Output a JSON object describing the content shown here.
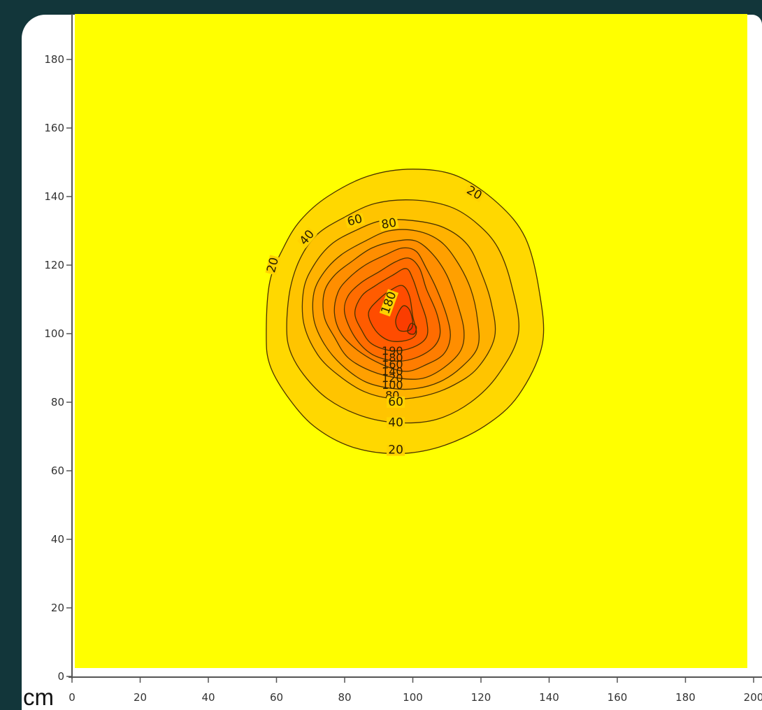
{
  "chart_data": {
    "type": "heatmap",
    "subtype": "filled-contour",
    "title": "",
    "xlabel": "",
    "ylabel": "",
    "unit_label": "cm",
    "xlim": [
      0,
      200
    ],
    "ylim": [
      0,
      190
    ],
    "x_ticks": [
      0,
      20,
      40,
      60,
      80,
      100,
      120,
      140,
      160,
      180,
      200
    ],
    "y_ticks": [
      0,
      20,
      40,
      60,
      80,
      100,
      120,
      140,
      160,
      180
    ],
    "x_tick_labels": [
      "0",
      "20",
      "40",
      "60",
      "80",
      "100",
      "120",
      "140",
      "160",
      "180",
      "200"
    ],
    "y_tick_labels": [
      "0",
      "20",
      "40",
      "60",
      "80",
      "100",
      "120",
      "140",
      "160",
      "180"
    ],
    "grid": false,
    "legend": "none",
    "background_color": "#ffff00",
    "colors": [
      "#ffff00",
      "#ffd800",
      "#ffc400",
      "#ffb200",
      "#ffa000",
      "#ff8e00",
      "#ff7d00",
      "#ff6c00",
      "#ff5c00",
      "#ff4c00",
      "#fb3d00",
      "#f53000"
    ],
    "peak": {
      "x": 100,
      "y": 101
    },
    "contour_levels": [
      20,
      40,
      60,
      80,
      100,
      120,
      140,
      160,
      180,
      190,
      200
    ],
    "contours": [
      {
        "level": 20,
        "label": "20",
        "points": [
          [
            57,
            100
          ],
          [
            58,
            115
          ],
          [
            62,
            125
          ],
          [
            67,
            133
          ],
          [
            75,
            140
          ],
          [
            87,
            146
          ],
          [
            100,
            148
          ],
          [
            113,
            146
          ],
          [
            125,
            138
          ],
          [
            133,
            128
          ],
          [
            137,
            113
          ],
          [
            138,
            97
          ],
          [
            131,
            82
          ],
          [
            121,
            73
          ],
          [
            108,
            67
          ],
          [
            95,
            65
          ],
          [
            82,
            67
          ],
          [
            71,
            73
          ],
          [
            63,
            82
          ],
          [
            58,
            91
          ]
        ]
      },
      {
        "level": 40,
        "label": "40",
        "points": [
          [
            63,
            102
          ],
          [
            64,
            113
          ],
          [
            67,
            122
          ],
          [
            72,
            129
          ],
          [
            80,
            134
          ],
          [
            89,
            138
          ],
          [
            100,
            139
          ],
          [
            111,
            137
          ],
          [
            119,
            132
          ],
          [
            125,
            125
          ],
          [
            129,
            114
          ],
          [
            131,
            100
          ],
          [
            125,
            88
          ],
          [
            117,
            80
          ],
          [
            107,
            75
          ],
          [
            96,
            74
          ],
          [
            85,
            76
          ],
          [
            75,
            81
          ],
          [
            68,
            88
          ],
          [
            64,
            95
          ]
        ]
      },
      {
        "level": 60,
        "label": "60",
        "points": [
          [
            68,
            103
          ],
          [
            68,
            113
          ],
          [
            71,
            120
          ],
          [
            76,
            126
          ],
          [
            83,
            130
          ],
          [
            91,
            133
          ],
          [
            100,
            133
          ],
          [
            109,
            131
          ],
          [
            116,
            126
          ],
          [
            120,
            118
          ],
          [
            123,
            109
          ],
          [
            124,
            99
          ],
          [
            119,
            90
          ],
          [
            112,
            85
          ],
          [
            104,
            82
          ],
          [
            95,
            81
          ],
          [
            86,
            83
          ],
          [
            78,
            88
          ],
          [
            72,
            94
          ]
        ]
      },
      {
        "level": 80,
        "label": "80",
        "points": [
          [
            71,
            104
          ],
          [
            71,
            112
          ],
          [
            74,
            118
          ],
          [
            79,
            123
          ],
          [
            86,
            127
          ],
          [
            93,
            130
          ],
          [
            101,
            130
          ],
          [
            108,
            127
          ],
          [
            113,
            121
          ],
          [
            117,
            113
          ],
          [
            119,
            104
          ],
          [
            119,
            96
          ],
          [
            114,
            90
          ],
          [
            108,
            86
          ],
          [
            101,
            84
          ],
          [
            94,
            84
          ],
          [
            86,
            86
          ],
          [
            79,
            91
          ],
          [
            74,
            97
          ]
        ]
      },
      {
        "level": 100,
        "label": "",
        "points": [
          [
            74,
            105
          ],
          [
            74,
            112
          ],
          [
            77,
            117
          ],
          [
            82,
            121
          ],
          [
            88,
            125
          ],
          [
            95,
            127
          ],
          [
            101,
            127
          ],
          [
            106,
            123
          ],
          [
            110,
            117
          ],
          [
            113,
            109
          ],
          [
            115,
            101
          ],
          [
            114,
            95
          ],
          [
            109,
            90
          ],
          [
            103,
            87
          ],
          [
            96,
            87
          ],
          [
            88,
            89
          ],
          [
            81,
            93
          ],
          [
            77,
            99
          ]
        ]
      },
      {
        "level": 120,
        "label": "",
        "points": [
          [
            77,
            106
          ],
          [
            78,
            112
          ],
          [
            81,
            116
          ],
          [
            86,
            120
          ],
          [
            92,
            123
          ],
          [
            97,
            125
          ],
          [
            101,
            124
          ],
          [
            104,
            119
          ],
          [
            107,
            113
          ],
          [
            110,
            105
          ],
          [
            111,
            99
          ],
          [
            109,
            94
          ],
          [
            104,
            91
          ],
          [
            98,
            89
          ],
          [
            91,
            91
          ],
          [
            84,
            95
          ],
          [
            79,
            100
          ]
        ]
      },
      {
        "level": 140,
        "label": "",
        "points": [
          [
            80,
            106
          ],
          [
            81,
            111
          ],
          [
            85,
            115
          ],
          [
            90,
            118
          ],
          [
            95,
            121
          ],
          [
            99,
            122
          ],
          [
            102,
            119
          ],
          [
            104,
            113
          ],
          [
            107,
            106
          ],
          [
            108,
            100
          ],
          [
            106,
            96
          ],
          [
            101,
            93
          ],
          [
            95,
            92
          ],
          [
            88,
            94
          ],
          [
            83,
            99
          ]
        ]
      },
      {
        "level": 160,
        "label": "",
        "points": [
          [
            83,
            106
          ],
          [
            85,
            111
          ],
          [
            89,
            114
          ],
          [
            94,
            117
          ],
          [
            98,
            119
          ],
          [
            100,
            116
          ],
          [
            102,
            110
          ],
          [
            104,
            104
          ],
          [
            104,
            99
          ],
          [
            100,
            96
          ],
          [
            94,
            95
          ],
          [
            88,
            97
          ],
          [
            85,
            101
          ]
        ]
      },
      {
        "level": 180,
        "label": "180",
        "points": [
          [
            87,
            106
          ],
          [
            90,
            110
          ],
          [
            94,
            113
          ],
          [
            97,
            114
          ],
          [
            99,
            111
          ],
          [
            100,
            105
          ],
          [
            101,
            100
          ],
          [
            98,
            98
          ],
          [
            93,
            98
          ],
          [
            89,
            101
          ]
        ]
      },
      {
        "level": 190,
        "label": "",
        "points": [
          [
            95,
            104
          ],
          [
            97,
            108
          ],
          [
            99,
            107
          ],
          [
            100,
            103
          ],
          [
            99,
            101
          ],
          [
            96,
            101
          ]
        ]
      },
      {
        "level": 200,
        "label": "",
        "points": [
          [
            98.5,
            101
          ],
          [
            99.5,
            103
          ],
          [
            101,
            102
          ],
          [
            100.5,
            100
          ],
          [
            99,
            100
          ]
        ]
      }
    ],
    "contour_labels": [
      {
        "text": "20",
        "x": 118,
        "y": 141,
        "rotate": 30
      },
      {
        "text": "20",
        "x": 59,
        "y": 120,
        "rotate": -75
      },
      {
        "text": "40",
        "x": 69,
        "y": 128,
        "rotate": -50
      },
      {
        "text": "60",
        "x": 83,
        "y": 133,
        "rotate": -15
      },
      {
        "text": "80",
        "x": 93,
        "y": 132,
        "rotate": -10
      },
      {
        "text": "180",
        "x": 93,
        "y": 109,
        "rotate": -70
      },
      {
        "text": "190",
        "x": 94,
        "y": 95,
        "rotate": 0
      },
      {
        "text": "180",
        "x": 94,
        "y": 93,
        "rotate": 0
      },
      {
        "text": "160",
        "x": 94,
        "y": 91,
        "rotate": 0
      },
      {
        "text": "140",
        "x": 94,
        "y": 89,
        "rotate": 0
      },
      {
        "text": "120",
        "x": 94,
        "y": 87,
        "rotate": 0
      },
      {
        "text": "100",
        "x": 94,
        "y": 85,
        "rotate": 0
      },
      {
        "text": "80",
        "x": 94,
        "y": 82,
        "rotate": 0
      },
      {
        "text": "60",
        "x": 95,
        "y": 80,
        "rotate": 0
      },
      {
        "text": "40",
        "x": 95,
        "y": 74,
        "rotate": 0
      },
      {
        "text": "20",
        "x": 95,
        "y": 66,
        "rotate": 0
      }
    ]
  }
}
